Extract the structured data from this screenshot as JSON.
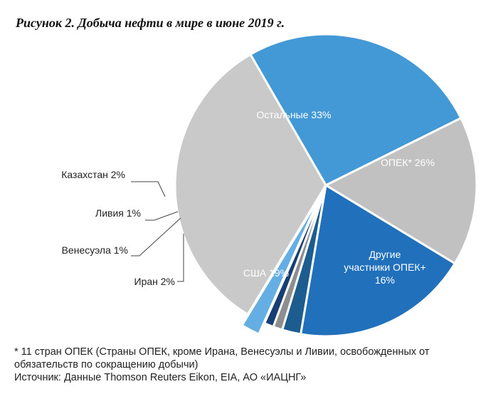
{
  "title": "Рисунок 2. Добыча нефти в мире в июне 2019 г.",
  "chart_data": {
    "type": "pie",
    "unit": "%",
    "slices": [
      {
        "key": "opec",
        "label": "ОПЕК*",
        "value": 26,
        "color": "#4398d6",
        "offset": 0
      },
      {
        "key": "other-opec-plus",
        "label": "Другие участники ОПЕК+",
        "value": 16,
        "color": "#c1c1c1",
        "offset": 0
      },
      {
        "key": "usa",
        "label": "США",
        "value": 19,
        "color": "#2070bb",
        "offset": 0
      },
      {
        "key": "iran",
        "label": "Иран",
        "value": 2,
        "color": "#1c5c8f",
        "offset": 0
      },
      {
        "key": "venezuela",
        "label": "Венесуэла",
        "value": 1,
        "color": "#8e8e8e",
        "offset": 0
      },
      {
        "key": "libya",
        "label": "Ливия",
        "value": 1,
        "color": "#173f73",
        "offset": 0
      },
      {
        "key": "kazakhstan",
        "label": "Казахстан",
        "value": 2,
        "color": "#64aee3",
        "offset": 1
      },
      {
        "key": "others",
        "label": "Остальные",
        "value": 33,
        "color": "#c9c9c9",
        "offset": 0
      }
    ]
  },
  "labels": {
    "opec": "ОПЕК* 26%",
    "other_opec_plus": [
      "Другие",
      "участники ОПЕК+",
      "16%"
    ],
    "usa": "США 19%",
    "others": "Остальные 33%",
    "kazakhstan": "Казахстан 2%",
    "libya": "Ливия 1%",
    "venezuela": "Венесуэла 1%",
    "iran": "Иран 2%"
  },
  "footnote": "* 11 стран ОПЕК (Страны ОПЕК, кроме Ирана, Венесуэлы и Ливии, освобожденных от обязательств по сокращению добычи)",
  "source": "Источник: Данные Thomson Reuters Eikon, EIA, АО «ИАЦНГ»"
}
